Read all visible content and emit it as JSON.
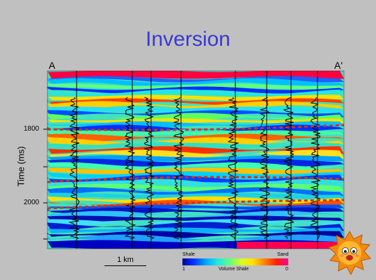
{
  "title": "Inversion",
  "section": {
    "start_label": "A",
    "end_label": "A'"
  },
  "axis": {
    "ylabel": "Time (ms)",
    "ticks": [
      "1800",
      "2000"
    ]
  },
  "scale": {
    "label": "1 km"
  },
  "colorbar": {
    "left_label": "Shale",
    "right_label": "Sand",
    "min_label": "1",
    "max_label": "0",
    "caption": "Volume Shale"
  },
  "colors": {
    "title": "#3a3ad0",
    "background": "#c0c0c0"
  }
}
